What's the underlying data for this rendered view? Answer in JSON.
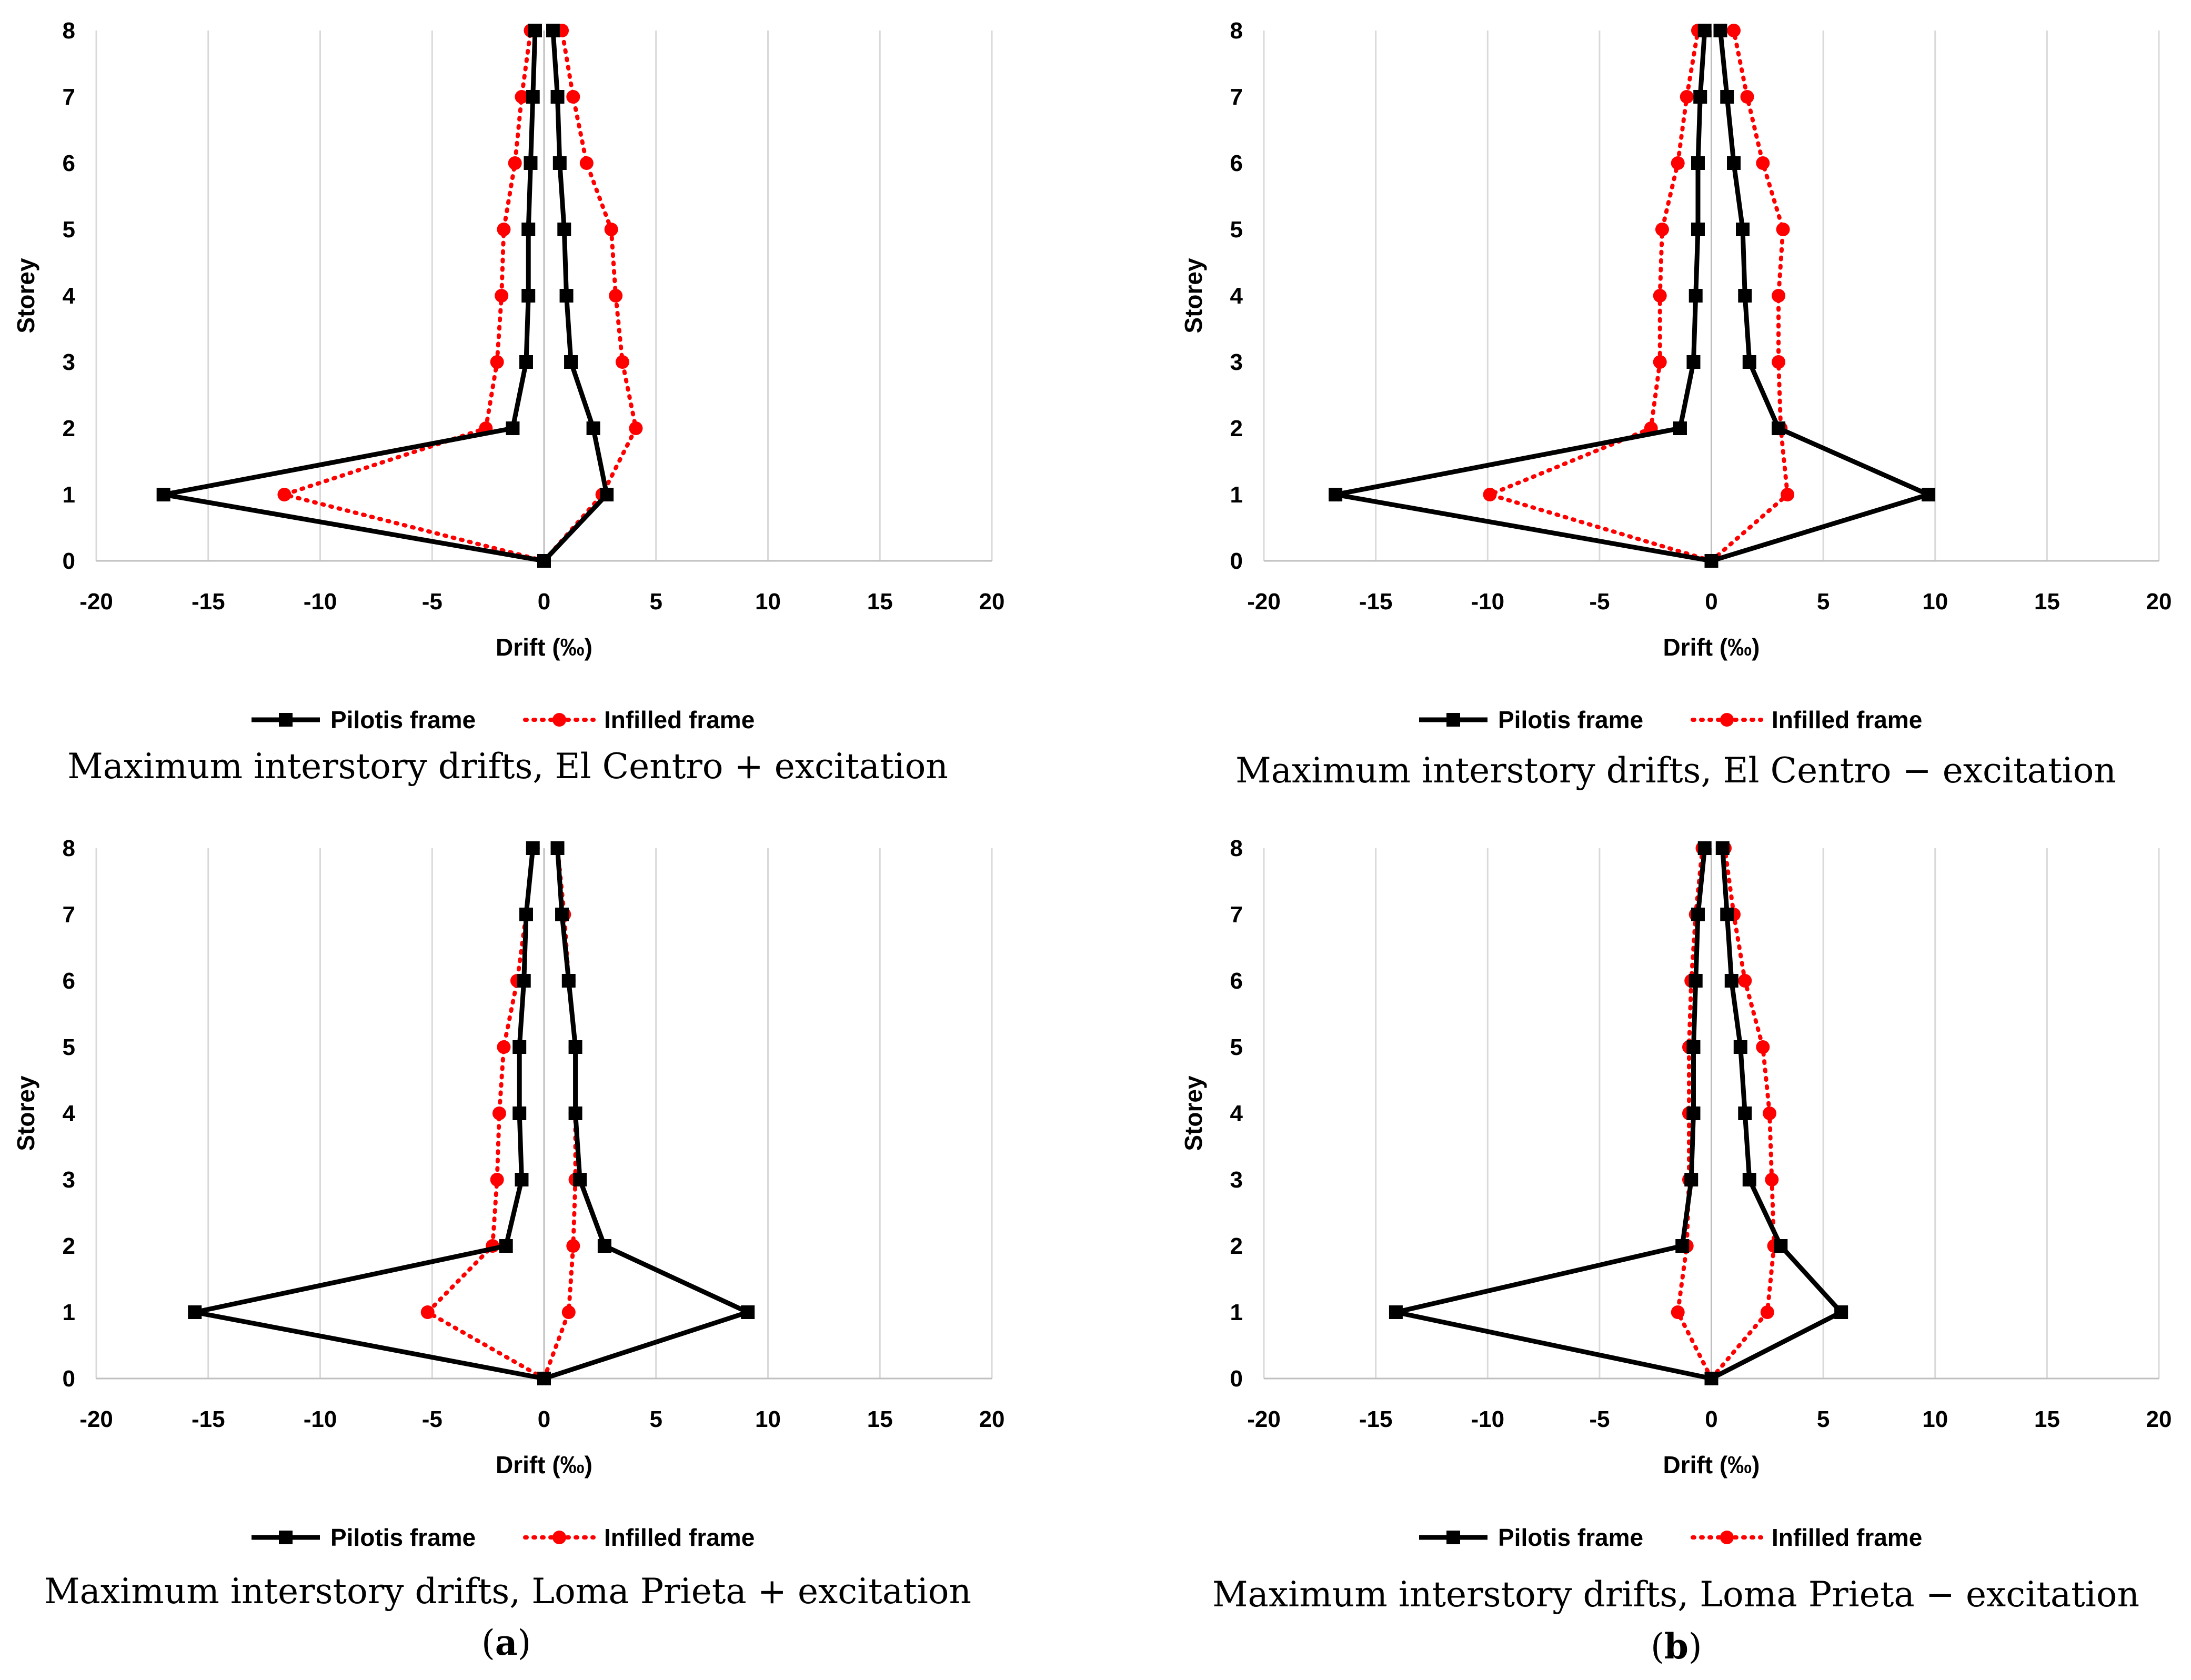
{
  "figure": {
    "panel_labels": [
      {
        "open": "(",
        "letter": "a",
        "close": ")"
      },
      {
        "open": "(",
        "letter": "b",
        "close": ")"
      }
    ]
  },
  "colors": {
    "pilotis": "#000000",
    "infilled": "#ff0000",
    "grid": "#d9d9d9",
    "axis": "#bfbfbf"
  },
  "chart_data": [
    {
      "type": "line",
      "title": "Maximum interstory drifts, El Centro + excitation",
      "xlabel": "Drift (‰)",
      "ylabel": "Storey",
      "xlim": [
        -20,
        20
      ],
      "ylim": [
        0,
        8
      ],
      "x_ticks": [
        "-20",
        "-15",
        "-10",
        "-5",
        "0",
        "5",
        "10",
        "15",
        "20"
      ],
      "y_ticks": [
        "0",
        "1",
        "2",
        "3",
        "4",
        "5",
        "6",
        "7",
        "8"
      ],
      "legend": "bottom-center",
      "series": [
        {
          "name": "Pilotis frame",
          "marker": "square",
          "style": "solid",
          "branches": [
            {
              "x": [
                0,
                -17.0,
                -1.4,
                -0.8,
                -0.7,
                -0.7,
                -0.6,
                -0.5,
                -0.4
              ],
              "y": [
                0,
                1,
                2,
                3,
                4,
                5,
                6,
                7,
                8
              ]
            },
            {
              "x": [
                0,
                2.8,
                2.2,
                1.2,
                1.0,
                0.9,
                0.7,
                0.6,
                0.4
              ],
              "y": [
                0,
                1,
                2,
                3,
                4,
                5,
                6,
                7,
                8
              ]
            }
          ]
        },
        {
          "name": "Infilled frame",
          "marker": "circle",
          "style": "dotted",
          "branches": [
            {
              "x": [
                0,
                -11.6,
                -2.6,
                -2.1,
                -1.9,
                -1.8,
                -1.3,
                -1.0,
                -0.6
              ],
              "y": [
                0,
                1,
                2,
                3,
                4,
                5,
                6,
                7,
                8
              ]
            },
            {
              "x": [
                0,
                2.6,
                4.1,
                3.5,
                3.2,
                3.0,
                1.9,
                1.3,
                0.8
              ],
              "y": [
                0,
                1,
                2,
                3,
                4,
                5,
                6,
                7,
                8
              ]
            }
          ]
        }
      ]
    },
    {
      "type": "line",
      "title": "Maximum interstory drifts, El Centro − excitation",
      "xlabel": "Drift (‰)",
      "ylabel": "Storey",
      "xlim": [
        -20,
        20
      ],
      "ylim": [
        0,
        8
      ],
      "x_ticks": [
        "-20",
        "-15",
        "-10",
        "-5",
        "0",
        "5",
        "10",
        "15",
        "20"
      ],
      "y_ticks": [
        "0",
        "1",
        "2",
        "3",
        "4",
        "5",
        "6",
        "7",
        "8"
      ],
      "legend": "bottom-center",
      "series": [
        {
          "name": "Pilotis frame",
          "marker": "square",
          "style": "solid",
          "branches": [
            {
              "x": [
                0,
                -16.8,
                -1.4,
                -0.8,
                -0.7,
                -0.6,
                -0.6,
                -0.5,
                -0.3
              ],
              "y": [
                0,
                1,
                2,
                3,
                4,
                5,
                6,
                7,
                8
              ]
            },
            {
              "x": [
                0,
                9.7,
                3.0,
                1.7,
                1.5,
                1.4,
                1.0,
                0.7,
                0.4
              ],
              "y": [
                0,
                1,
                2,
                3,
                4,
                5,
                6,
                7,
                8
              ]
            }
          ]
        },
        {
          "name": "Infilled frame",
          "marker": "circle",
          "style": "dotted",
          "branches": [
            {
              "x": [
                0,
                -9.9,
                -2.7,
                -2.3,
                -2.3,
                -2.2,
                -1.5,
                -1.1,
                -0.6
              ],
              "y": [
                0,
                1,
                2,
                3,
                4,
                5,
                6,
                7,
                8
              ]
            },
            {
              "x": [
                0,
                3.4,
                3.1,
                3.0,
                3.0,
                3.2,
                2.3,
                1.6,
                1.0
              ],
              "y": [
                0,
                1,
                2,
                3,
                4,
                5,
                6,
                7,
                8
              ]
            }
          ]
        }
      ]
    },
    {
      "type": "line",
      "title": "Maximum interstory drifts, Loma Prieta + excitation",
      "xlabel": "Drift (‰)",
      "ylabel": "Storey",
      "xlim": [
        -20,
        20
      ],
      "ylim": [
        0,
        8
      ],
      "x_ticks": [
        "-20",
        "-15",
        "-10",
        "-5",
        "0",
        "5",
        "10",
        "15",
        "20"
      ],
      "y_ticks": [
        "0",
        "1",
        "2",
        "3",
        "4",
        "5",
        "6",
        "7",
        "8"
      ],
      "legend": "bottom-center",
      "series": [
        {
          "name": "Pilotis frame",
          "marker": "square",
          "style": "solid",
          "branches": [
            {
              "x": [
                0,
                -15.6,
                -1.7,
                -1.0,
                -1.1,
                -1.1,
                -0.9,
                -0.8,
                -0.5
              ],
              "y": [
                0,
                1,
                2,
                3,
                4,
                5,
                6,
                7,
                8
              ]
            },
            {
              "x": [
                0,
                9.1,
                2.7,
                1.6,
                1.4,
                1.4,
                1.1,
                0.8,
                0.6
              ],
              "y": [
                0,
                1,
                2,
                3,
                4,
                5,
                6,
                7,
                8
              ]
            }
          ]
        },
        {
          "name": "Infilled frame",
          "marker": "circle",
          "style": "dotted",
          "branches": [
            {
              "x": [
                0,
                -5.2,
                -2.3,
                -2.1,
                -2.0,
                -1.8,
                -1.2,
                -0.8,
                -0.5
              ],
              "y": [
                0,
                1,
                2,
                3,
                4,
                5,
                6,
                7,
                8
              ]
            },
            {
              "x": [
                0,
                1.1,
                1.3,
                1.4,
                1.4,
                1.4,
                1.1,
                0.9,
                0.6
              ],
              "y": [
                0,
                1,
                2,
                3,
                4,
                5,
                6,
                7,
                8
              ]
            }
          ]
        }
      ]
    },
    {
      "type": "line",
      "title": "Maximum interstory drifts, Loma Prieta − excitation",
      "xlabel": "Drift (‰)",
      "ylabel": "Storey",
      "xlim": [
        -20,
        20
      ],
      "ylim": [
        0,
        8
      ],
      "x_ticks": [
        "-20",
        "-15",
        "-10",
        "-5",
        "0",
        "5",
        "10",
        "15",
        "20"
      ],
      "y_ticks": [
        "0",
        "1",
        "2",
        "3",
        "4",
        "5",
        "6",
        "7",
        "8"
      ],
      "legend": "bottom-center",
      "series": [
        {
          "name": "Pilotis frame",
          "marker": "square",
          "style": "solid",
          "branches": [
            {
              "x": [
                0,
                -14.1,
                -1.3,
                -0.9,
                -0.8,
                -0.8,
                -0.7,
                -0.6,
                -0.3
              ],
              "y": [
                0,
                1,
                2,
                3,
                4,
                5,
                6,
                7,
                8
              ]
            },
            {
              "x": [
                0,
                5.8,
                3.1,
                1.7,
                1.5,
                1.3,
                0.9,
                0.7,
                0.5
              ],
              "y": [
                0,
                1,
                2,
                3,
                4,
                5,
                6,
                7,
                8
              ]
            }
          ]
        },
        {
          "name": "Infilled frame",
          "marker": "circle",
          "style": "dotted",
          "branches": [
            {
              "x": [
                0,
                -1.5,
                -1.1,
                -1.0,
                -1.0,
                -1.0,
                -0.9,
                -0.7,
                -0.4
              ],
              "y": [
                0,
                1,
                2,
                3,
                4,
                5,
                6,
                7,
                8
              ]
            },
            {
              "x": [
                0,
                2.5,
                2.8,
                2.7,
                2.6,
                2.3,
                1.5,
                1.0,
                0.6
              ],
              "y": [
                0,
                1,
                2,
                3,
                4,
                5,
                6,
                7,
                8
              ]
            }
          ]
        }
      ]
    }
  ]
}
